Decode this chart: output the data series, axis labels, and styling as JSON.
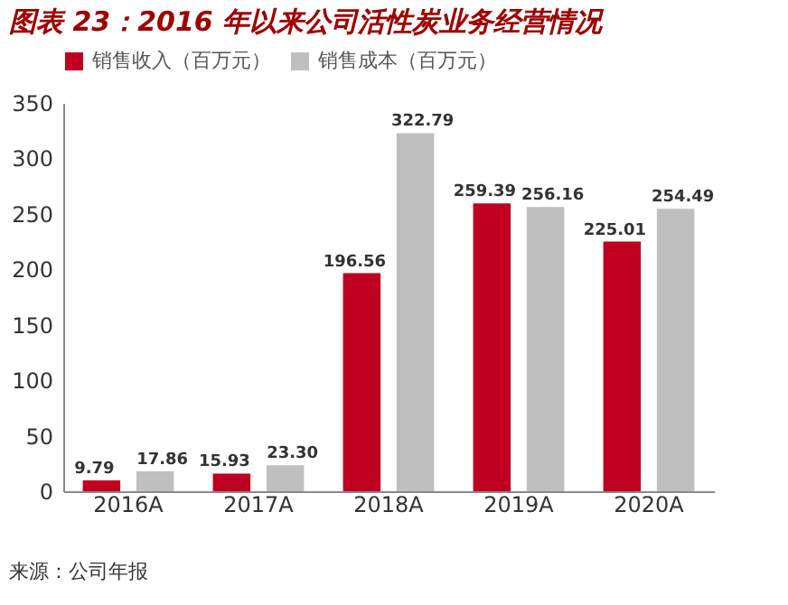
{
  "chart_data": {
    "type": "bar",
    "title": "图表 23：2016 年以来公司活性炭业务经营情况",
    "categories": [
      "2016A",
      "2017A",
      "2018A",
      "2019A",
      "2020A"
    ],
    "series": [
      {
        "name": "销售收入（百万元）",
        "color": "#c00020",
        "values": [
          9.79,
          15.93,
          196.56,
          259.39,
          225.01
        ]
      },
      {
        "name": "销售成本（百万元）",
        "color": "#bfbfbf",
        "values": [
          17.86,
          23.3,
          322.79,
          256.16,
          254.49
        ],
        "value_labels": [
          "17.86",
          "23.30",
          "322.79",
          "256.16",
          "254.49"
        ]
      }
    ],
    "ylim": [
      0,
      350
    ],
    "yticks": [
      0,
      50,
      100,
      150,
      200,
      250,
      300,
      350
    ],
    "data_labels": true,
    "grid": false,
    "legend": "top",
    "annotations": [
      "来源：公司年报"
    ]
  }
}
